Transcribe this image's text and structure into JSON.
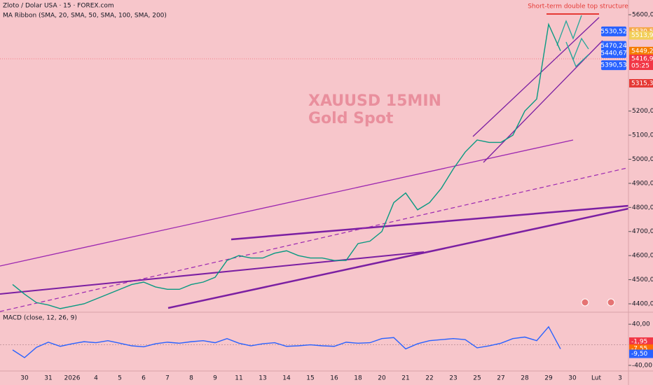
{
  "chart_data": {
    "type": "line",
    "title": "Zloto / Dolar USA · 15 · FOREX.com",
    "subtitle": "MA Ribbon (SMA, 20, SMA, 50, SMA, 100, SMA, 200)",
    "watermark": [
      "XAUUSD 15MIN",
      "Gold Spot"
    ],
    "annotation": "Short-term double top structure",
    "categories": [
      null,
      "30",
      null,
      "31",
      null,
      "2026",
      null,
      "4",
      null,
      "5",
      null,
      "6",
      null,
      "7",
      null,
      "8",
      null,
      "9",
      null,
      "11",
      null,
      "13",
      null,
      "14",
      null,
      "15",
      null,
      "16",
      null,
      "18",
      null,
      "20",
      null,
      "21",
      null,
      "22",
      null,
      "23",
      null,
      "25",
      null,
      "27",
      null,
      "28",
      null,
      "29",
      null,
      "30",
      null,
      "Lut",
      null,
      "3"
    ],
    "series": [
      {
        "name": "Close",
        "color": "#089981",
        "values": [
          4480,
          4440,
          4405,
          4395,
          4380,
          4390,
          4400,
          4420,
          4440,
          4460,
          4480,
          4490,
          4470,
          4460,
          4460,
          4480,
          4490,
          4510,
          4580,
          4600,
          4590,
          4590,
          4610,
          4620,
          4600,
          4590,
          4590,
          4580,
          4580,
          4650,
          4660,
          4700,
          4820,
          4860,
          4790,
          4820,
          4880,
          4960,
          5030,
          5080,
          5070,
          5070,
          5100,
          5200,
          5250,
          5560,
          5450,
          null,
          null,
          null,
          null,
          null
        ]
      }
    ],
    "ylim": [
      4368,
      5661
    ],
    "yticks": [
      {
        "value": 5600,
        "label": "5600,00"
      },
      {
        "value": 5200,
        "label": "5200,00"
      },
      {
        "value": 5100,
        "label": "5100,00"
      },
      {
        "value": 5000,
        "label": "5000,00"
      },
      {
        "value": 4900,
        "label": "4900,00"
      },
      {
        "value": 4800,
        "label": "4800,00"
      },
      {
        "value": 4700,
        "label": "4700,00"
      },
      {
        "value": 4600,
        "label": "4600,00"
      },
      {
        "value": 4500,
        "label": "4500,00"
      },
      {
        "value": 4400,
        "label": "4400,00"
      }
    ],
    "targets": [
      {
        "value": 5530.52,
        "label": "5530,52"
      },
      {
        "value": 5470.24,
        "label": "5470,24"
      },
      {
        "value": 5440.67,
        "label": "5440,67"
      },
      {
        "value": 5390.53,
        "label": "5390,53"
      }
    ],
    "target_color": "#2962ff",
    "price_labels": [
      {
        "value": 5530.54,
        "label": "5530,54",
        "color": "#f5a94a"
      },
      {
        "value": 5513.98,
        "label": "5513,98",
        "color": "#f2cf5b"
      },
      {
        "value": 5449.25,
        "label": "5449,25",
        "color": "#f57c00"
      },
      {
        "value": 5416.94,
        "label": "5416,94",
        "sub": "05:25",
        "color": "#f23645"
      },
      {
        "value": 5315.3,
        "label": "5315,30",
        "color": "#e53935"
      }
    ],
    "macd": {
      "title": "MACD (close, 12, 26, 9)",
      "series": [
        {
          "name": "MACD",
          "color": "#2962ff",
          "values": [
            -10,
            -25,
            -5,
            5,
            -3,
            2,
            6,
            4,
            8,
            3,
            -2,
            -4,
            2,
            5,
            3,
            6,
            8,
            4,
            12,
            3,
            -2,
            2,
            4,
            -3,
            -2,
            0,
            -2,
            -3,
            5,
            3,
            4,
            12,
            14,
            -8,
            2,
            8,
            10,
            12,
            10,
            -6,
            -2,
            3,
            12,
            15,
            8,
            35,
            -8,
            null,
            null,
            null,
            null,
            null
          ]
        }
      ],
      "ylim": [
        -51,
        62
      ],
      "yticks": [
        {
          "value": 40,
          "label": "40,00"
        },
        {
          "value": -40,
          "label": "-40,00"
        }
      ],
      "labels": [
        {
          "value": -1.95,
          "label": "-1,95",
          "color": "#f23645"
        },
        {
          "value": -7.55,
          "label": "-7,55",
          "color": "#ff6d00"
        },
        {
          "value": -9.5,
          "label": "-9,50",
          "color": "#2962ff"
        }
      ]
    }
  }
}
